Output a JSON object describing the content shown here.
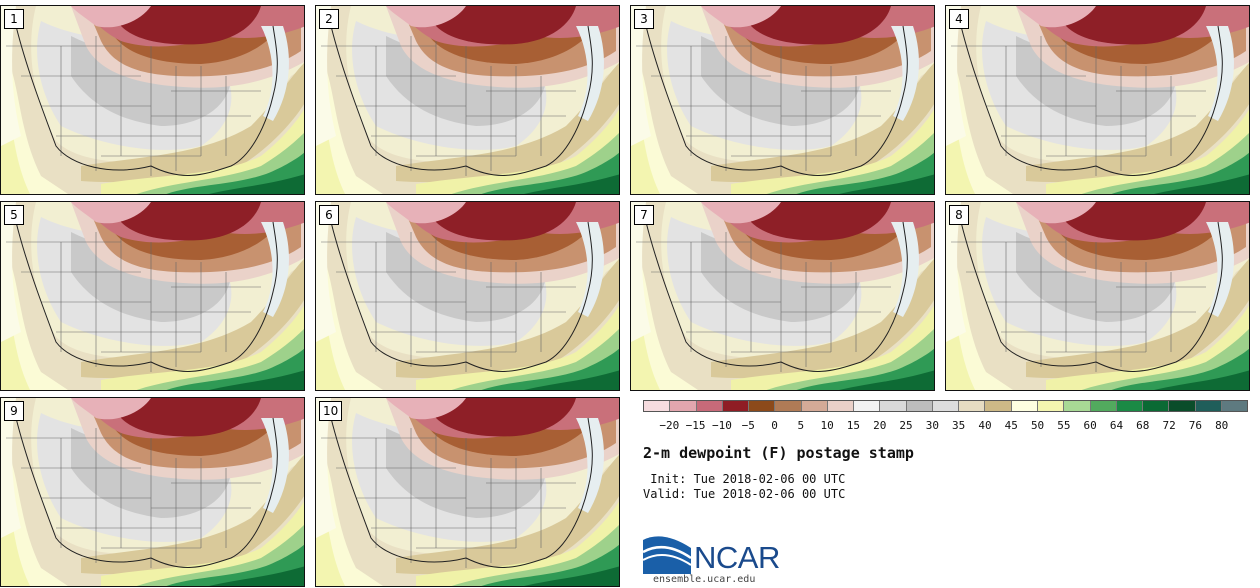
{
  "map": {
    "title": "2-m dewpoint (F) postage stamp",
    "init": " Init: Tue 2018-02-06 00 UTC",
    "valid": "Valid: Tue 2018-02-06 00 UTC",
    "members": [
      "1",
      "2",
      "3",
      "4",
      "5",
      "6",
      "7",
      "8",
      "9",
      "10"
    ]
  },
  "colorbar": {
    "colors": [
      "#f6dcdf",
      "#e2a6ae",
      "#c76a79",
      "#8f1d24",
      "#8c4a1a",
      "#b07b56",
      "#d4aa97",
      "#ead0c8",
      "#f2f2f2",
      "#d9d9d9",
      "#bdbdbd",
      "#dddddd",
      "#e6dcc2",
      "#cdb987",
      "#fefee0",
      "#f4f5b0",
      "#a8d995",
      "#52aa5e",
      "#1a8a45",
      "#0a6a34",
      "#0a4d2a",
      "#1f5e5a",
      "#5e7a80"
    ],
    "ticks": [
      "−20",
      "−15",
      "−10",
      "−5",
      "0",
      "5",
      "10",
      "15",
      "20",
      "25",
      "30",
      "35",
      "40",
      "45",
      "50",
      "55",
      "60",
      "64",
      "68",
      "72",
      "76",
      "80"
    ]
  },
  "branding": {
    "logo_text": "NCAR",
    "url": "ensemble.ucar.edu"
  }
}
